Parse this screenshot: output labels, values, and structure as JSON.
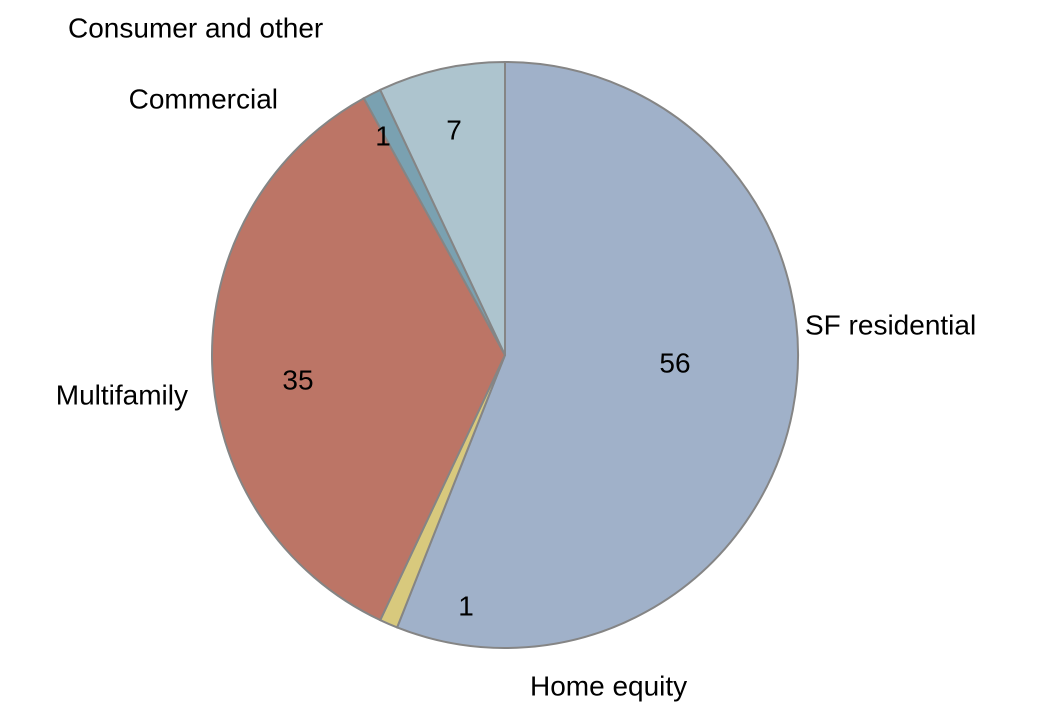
{
  "chart_data": {
    "type": "pie",
    "categories": [
      "SF residential",
      "Home equity",
      "Multifamily",
      "Commercial",
      "Consumer and other"
    ],
    "values": [
      56,
      1,
      35,
      1,
      7
    ],
    "colors": [
      "#a0b1c9",
      "#d8c97d",
      "#bc7566",
      "#7aa1b1",
      "#adc4ce"
    ]
  }
}
